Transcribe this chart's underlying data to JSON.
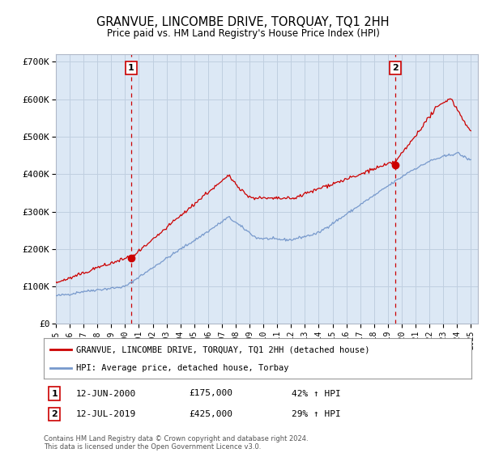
{
  "title": "GRANVUE, LINCOMBE DRIVE, TORQUAY, TQ1 2HH",
  "subtitle": "Price paid vs. HM Land Registry's House Price Index (HPI)",
  "background_color": "#ffffff",
  "plot_bg_color": "#dce8f5",
  "ylim": [
    0,
    720000
  ],
  "yticks": [
    0,
    100000,
    200000,
    300000,
    400000,
    500000,
    600000,
    700000
  ],
  "ytick_labels": [
    "£0",
    "£100K",
    "£200K",
    "£300K",
    "£400K",
    "£500K",
    "£600K",
    "£700K"
  ],
  "xstart_year": 1995,
  "xend_year": 2025,
  "marker1": {
    "year": 2000.45,
    "value": 175000,
    "label": "1",
    "date": "12-JUN-2000",
    "price": "£175,000",
    "hpi_pct": "42% ↑ HPI"
  },
  "marker2": {
    "year": 2019.53,
    "value": 425000,
    "label": "2",
    "date": "12-JUL-2019",
    "price": "£425,000",
    "hpi_pct": "29% ↑ HPI"
  },
  "legend_entry1": "GRANVUE, LINCOMBE DRIVE, TORQUAY, TQ1 2HH (detached house)",
  "legend_entry2": "HPI: Average price, detached house, Torbay",
  "footer": "Contains HM Land Registry data © Crown copyright and database right 2024.\nThis data is licensed under the Open Government Licence v3.0.",
  "line1_color": "#cc0000",
  "line2_color": "#7799cc",
  "grid_color": "#c0cfe0",
  "vline_color": "#cc0000"
}
